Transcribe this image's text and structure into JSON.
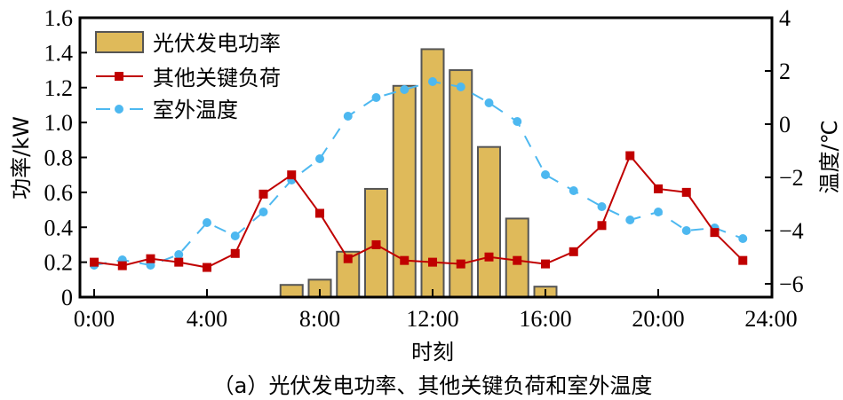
{
  "chart_data": {
    "type": "bar+line",
    "caption": "（a）光伏发电功率、其他关键负荷和室外温度",
    "xlabel": "时刻",
    "ylabel_left": "功率/kW",
    "ylabel_right": "温度/℃",
    "x_hours": [
      0,
      1,
      2,
      3,
      4,
      5,
      6,
      7,
      8,
      9,
      10,
      11,
      12,
      13,
      14,
      15,
      16,
      17,
      18,
      19,
      20,
      21,
      22,
      23
    ],
    "x_ticks": [
      {
        "hour": 0,
        "label": "0:00"
      },
      {
        "hour": 4,
        "label": "4:00"
      },
      {
        "hour": 8,
        "label": "8:00"
      },
      {
        "hour": 12,
        "label": "12:00"
      },
      {
        "hour": 16,
        "label": "16:00"
      },
      {
        "hour": 20,
        "label": "20:00"
      },
      {
        "hour": 24,
        "label": "24:00"
      }
    ],
    "xlim": [
      -0.5,
      24
    ],
    "ylim_left": [
      0,
      1.6
    ],
    "ylim_right": [
      -6.5,
      4
    ],
    "y_ticks_left": [
      {
        "v": 0,
        "label": "0"
      },
      {
        "v": 0.2,
        "label": "0.2"
      },
      {
        "v": 0.4,
        "label": "0.4"
      },
      {
        "v": 0.6,
        "label": "0.6"
      },
      {
        "v": 0.8,
        "label": "0.8"
      },
      {
        "v": 1.0,
        "label": "1.0"
      },
      {
        "v": 1.2,
        "label": "1.2"
      },
      {
        "v": 1.4,
        "label": "1.4"
      },
      {
        "v": 1.6,
        "label": "1.6"
      }
    ],
    "y_ticks_right": [
      {
        "v": 4,
        "label": "4"
      },
      {
        "v": 2,
        "label": "2"
      },
      {
        "v": 0,
        "label": "0"
      },
      {
        "v": -2,
        "label": "−2"
      },
      {
        "v": -4,
        "label": "−4"
      },
      {
        "v": -6,
        "label": "−6"
      }
    ],
    "series": [
      {
        "name": "光伏发电功率",
        "type": "bar",
        "axis": "left",
        "color": "#DFBA5A",
        "edge_color": "#555555",
        "values": [
          0,
          0,
          0,
          0,
          0,
          0,
          0,
          0.07,
          0.1,
          0.26,
          0.62,
          1.21,
          1.42,
          1.3,
          0.86,
          0.45,
          0.06,
          0,
          0,
          0,
          0,
          0,
          0,
          0
        ]
      },
      {
        "name": "其他关键负荷",
        "type": "line",
        "axis": "left",
        "color": "#C00000",
        "marker": "square",
        "values": [
          0.2,
          0.18,
          0.22,
          0.2,
          0.17,
          0.25,
          0.59,
          0.7,
          0.48,
          0.22,
          0.3,
          0.21,
          0.2,
          0.19,
          0.23,
          0.21,
          0.19,
          0.26,
          0.41,
          0.81,
          0.62,
          0.6,
          0.37,
          0.21
        ]
      },
      {
        "name": "室外温度",
        "type": "line",
        "axis": "right",
        "color": "#4DB8F0",
        "marker": "circle",
        "linestyle": "dashed",
        "values": [
          -5.3,
          -5.1,
          -5.3,
          -4.9,
          -3.7,
          -4.2,
          -3.3,
          -2.1,
          -1.3,
          0.3,
          1.0,
          1.3,
          1.6,
          1.4,
          0.8,
          0.1,
          -1.9,
          -2.5,
          -3.1,
          -3.6,
          -3.3,
          -4.0,
          -3.9,
          -4.3
        ]
      }
    ],
    "legend": {
      "position": "upper-left",
      "items": [
        {
          "label": "光伏发电功率",
          "kind": "patch"
        },
        {
          "label": "其他关键负荷",
          "kind": "line-square"
        },
        {
          "label": "室外温度",
          "kind": "dashed-circle"
        }
      ]
    },
    "grid": false
  }
}
